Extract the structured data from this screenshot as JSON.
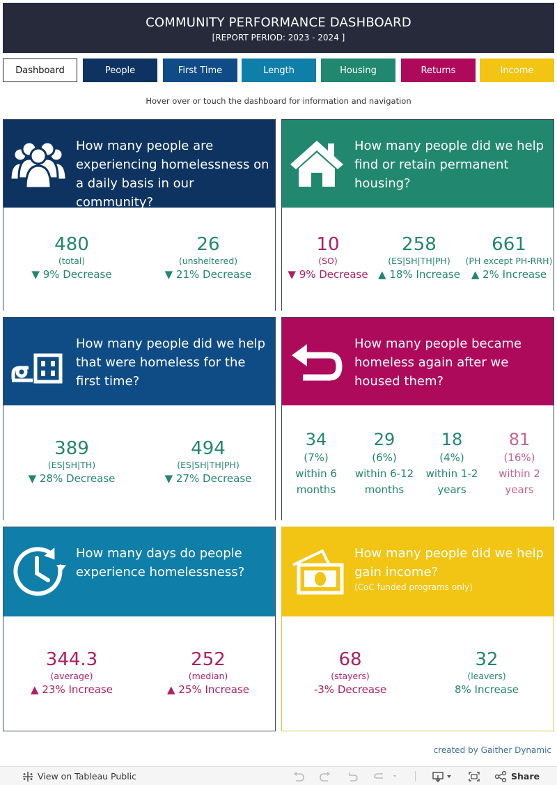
{
  "header": {
    "title": "COMMUNITY PERFORMANCE DASHBOARD",
    "subtitle": "[REPORT PERIOD: 2023 - 2024 ]"
  },
  "nav": [
    {
      "label": "Dashboard",
      "color": "#ffffff"
    },
    {
      "label": "People",
      "color": "#0e3360"
    },
    {
      "label": "First Time",
      "color": "#0f4c85"
    },
    {
      "label": "Length",
      "color": "#0f7ea8"
    },
    {
      "label": "Housing",
      "color": "#22876f"
    },
    {
      "label": "Returns",
      "color": "#ae0a5c"
    },
    {
      "label": "Income",
      "color": "#f2c413"
    }
  ],
  "hint": "Hover over or touch the dashboard for information and navigation",
  "panels": {
    "people": {
      "color": "#0e3360",
      "icon": "people-group-icon",
      "question": "How many people are experiencing homelessness on a daily basis in our community?",
      "metrics": [
        {
          "value": "480",
          "label": "(total)",
          "change": "▼ 9% Decrease"
        },
        {
          "value": "26",
          "label": "(unsheltered)",
          "change": "▼ 21% Decrease"
        }
      ]
    },
    "housing": {
      "color": "#22876f",
      "icon": "house-icon",
      "question": "How many people did we help find or retain permanent housing?",
      "metrics": [
        {
          "value": "10",
          "label": "(SO)",
          "change": "▼ 9% Decrease"
        },
        {
          "value": "258",
          "label": "(ES|SH|TH|PH)",
          "change": "▲ 18% Increase"
        },
        {
          "value": "661",
          "label": "(PH except PH-RRH)",
          "change": "▲ 2% Increase"
        }
      ]
    },
    "first_time": {
      "color": "#0f4c85",
      "icon": "person-building-icon",
      "question": "How many people did we help that were homeless for the first time?",
      "metrics": [
        {
          "value": "389",
          "label": "(ES|SH|TH)",
          "change": "▼ 28% Decrease"
        },
        {
          "value": "494",
          "label": "(ES|SH|TH|PH)",
          "change": "▼ 27% Decrease"
        }
      ]
    },
    "returns": {
      "color": "#ae0a5c",
      "icon": "return-arrow-icon",
      "question": "How many people became homeless again after we housed them?",
      "metrics": [
        {
          "value": "34",
          "pct": "(7%)",
          "l1": "within 6",
          "l2": "months"
        },
        {
          "value": "29",
          "pct": "(6%)",
          "l1": "within 6-12",
          "l2": "months"
        },
        {
          "value": "18",
          "pct": "(4%)",
          "l1": "within 1-2",
          "l2": "years"
        },
        {
          "value": "81",
          "pct": "(16%)",
          "l1": "within 2",
          "l2": "years"
        }
      ]
    },
    "length": {
      "color": "#0f7ea8",
      "icon": "clock-icon",
      "question": "How many days do people experience homelessness?",
      "metrics": [
        {
          "value": "344.3",
          "label": "(average)",
          "change": "▲ 23% Increase"
        },
        {
          "value": "252",
          "label": "(median)",
          "change": "▲ 25% Increase"
        }
      ]
    },
    "income": {
      "color": "#f2c413",
      "icon": "money-icon",
      "question": "How many people did we help gain income?",
      "note": "(CoC funded programs only)",
      "metrics": [
        {
          "value": "68",
          "label": "(stayers)",
          "change": "-3% Decrease"
        },
        {
          "value": "32",
          "label": "(leavers)",
          "change": "8% Increase"
        }
      ]
    }
  },
  "credit": "created by Gaither Dynamic",
  "toolbar": {
    "view": "View on Tableau Public",
    "share": "Share"
  }
}
